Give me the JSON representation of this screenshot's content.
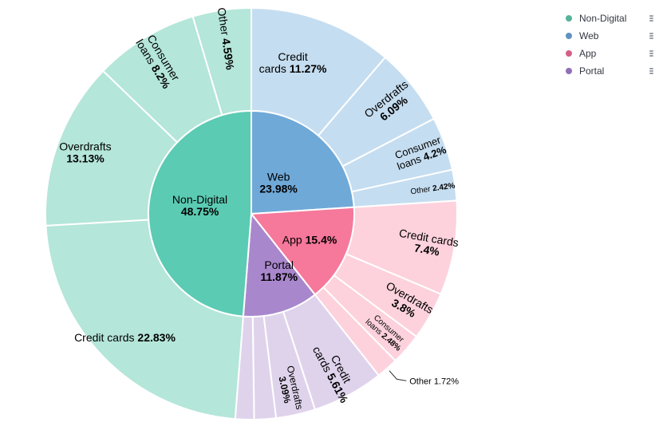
{
  "colors": {
    "Non-Digital": {
      "inner": "#5bcbb3",
      "outer": "#b4e6d9"
    },
    "Web": {
      "inner": "#6fa9d8",
      "outer": "#c5ddf0"
    },
    "App": {
      "inner": "#f6789b",
      "outer": "#fdd2dd"
    },
    "Portal": {
      "inner": "#a987cc",
      "outer": "#dfd3ec"
    }
  },
  "legend": [
    {
      "name": "Non-Digital",
      "color": "#54b399"
    },
    {
      "name": "Web",
      "color": "#6092c0"
    },
    {
      "name": "App",
      "color": "#d36086"
    },
    {
      "name": "Portal",
      "color": "#9170b8"
    }
  ],
  "chart_data": {
    "type": "sunburst",
    "series": [
      {
        "name": "Web",
        "label": "Web",
        "pct": 23.98,
        "pct_label": "23.98%",
        "children": [
          {
            "name": "Credit cards",
            "pct": 11.27,
            "pct_label": "11.27%"
          },
          {
            "name": "Overdrafts",
            "pct": 6.09,
            "pct_label": "6.09%"
          },
          {
            "name": "Consumer loans",
            "pct": 4.2,
            "pct_label": "4.2%"
          },
          {
            "name": "Other",
            "pct": 2.42,
            "pct_label": "2.42%"
          }
        ]
      },
      {
        "name": "App",
        "label": "App",
        "pct": 15.4,
        "pct_label": "15.4%",
        "children": [
          {
            "name": "Credit cards",
            "pct": 7.4,
            "pct_label": "7.4%"
          },
          {
            "name": "Overdrafts",
            "pct": 3.8,
            "pct_label": "3.8%"
          },
          {
            "name": "Consumer loans",
            "pct": 2.48,
            "pct_label": "2.48%"
          },
          {
            "name": "Other",
            "pct": 1.72,
            "pct_label": "1.72%"
          }
        ]
      },
      {
        "name": "Portal",
        "label": "Portal",
        "pct": 11.87,
        "pct_label": "11.87%",
        "children": [
          {
            "name": "Credit cards",
            "pct": 5.61,
            "pct_label": "5.61%"
          },
          {
            "name": "Overdrafts",
            "pct": 3.09,
            "pct_label": "3.09%"
          },
          {
            "name": "",
            "pct": 1.7,
            "pct_label": ""
          },
          {
            "name": "",
            "pct": 1.47,
            "pct_label": ""
          }
        ]
      },
      {
        "name": "Non-Digital",
        "label": "Non-Digital",
        "pct": 48.75,
        "pct_label": "48.75%",
        "children": [
          {
            "name": "Credit cards",
            "pct": 22.83,
            "pct_label": "22.83%"
          },
          {
            "name": "Overdrafts",
            "pct": 13.13,
            "pct_label": "13.13%"
          },
          {
            "name": "Consumer loans",
            "pct": 8.2,
            "pct_label": "8.2%"
          },
          {
            "name": "Other",
            "pct": 4.59,
            "pct_label": "4.59%"
          }
        ]
      }
    ]
  }
}
